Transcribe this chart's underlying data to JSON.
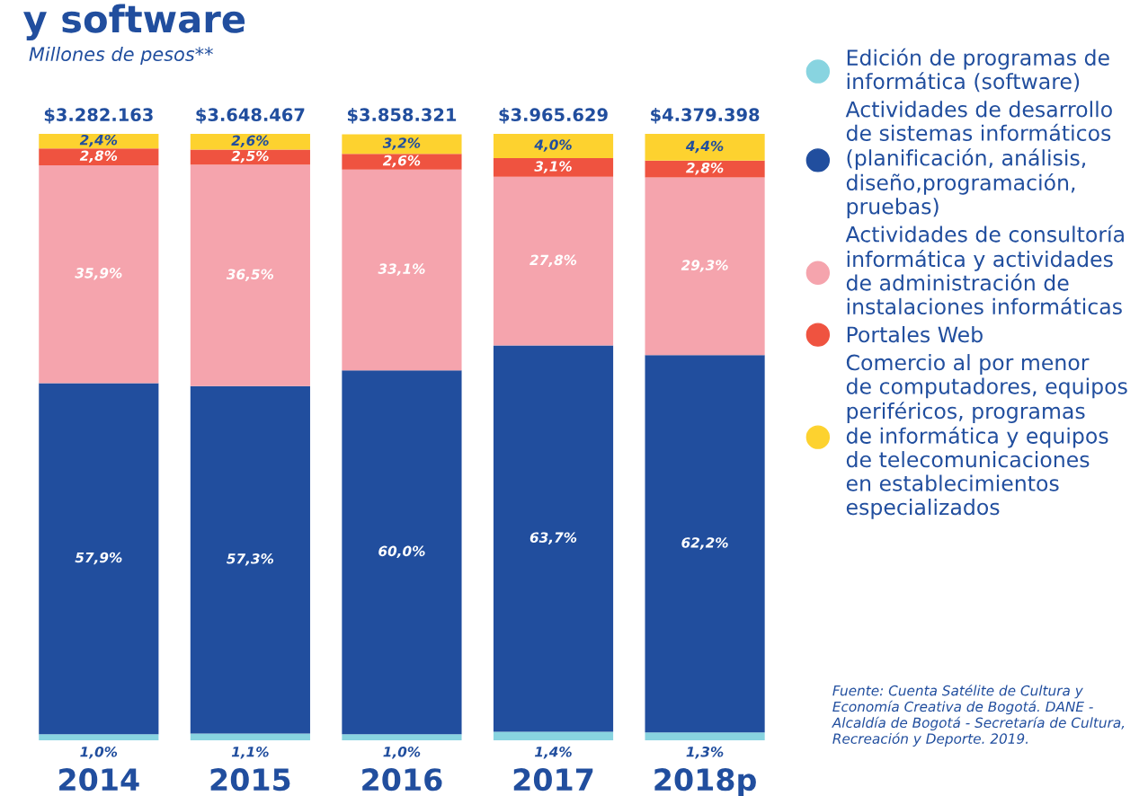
{
  "chart_data": {
    "type": "bar",
    "title": "y software",
    "subtitle": "Millones de pesos**",
    "categories": [
      "2014",
      "2015",
      "2016",
      "2017",
      "2018p"
    ],
    "stacked": true,
    "tick_labels": "x",
    "legend": "right",
    "grid": false,
    "series": [
      {
        "name": "Edición de programas de\ninformática (software)",
        "color": "#88d4e0",
        "values": [
          1.0,
          1.1,
          1.0,
          1.4,
          1.3
        ],
        "value_labels": [
          "1,0%",
          "1,1%",
          "1,0%",
          "1,4%",
          "1,3%"
        ]
      },
      {
        "name": "Actividades de desarrollo\nde sistemas informáticos\n(planificación, análisis,\ndiseño,programación,\npruebas)",
        "color": "#214e9e",
        "values": [
          57.9,
          57.3,
          60.0,
          63.7,
          62.2
        ],
        "value_labels": [
          "57,9%",
          "57,3%",
          "60,0%",
          "63,7%",
          "62,2%"
        ]
      },
      {
        "name": "Actividades de consultoría\ninformática y actividades\nde administración de\ninstalaciones informáticas",
        "color": "#f5a4ad",
        "values": [
          35.9,
          36.5,
          33.1,
          27.8,
          29.3
        ],
        "value_labels": [
          "35,9%",
          "36,5%",
          "33,1%",
          "27,8%",
          "29,3%"
        ]
      },
      {
        "name": "Portales Web",
        "color": "#ef5340",
        "values": [
          2.8,
          2.5,
          2.6,
          3.1,
          2.8
        ],
        "value_labels": [
          "2,8%",
          "2,5%",
          "2,6%",
          "3,1%",
          "2,8%"
        ]
      },
      {
        "name": "Comercio al por menor\nde computadores, equipos\nperiféricos, programas\nde informática y equipos\nde telecomunicaciones\nen establecimientos\nespecializados",
        "color": "#fdd22f",
        "values": [
          2.4,
          2.6,
          3.2,
          4.0,
          4.4
        ],
        "value_labels": [
          "2,4%",
          "2,6%",
          "3,2%",
          "4,0%",
          "4,4%"
        ]
      }
    ],
    "annotations": [
      {
        "text": "$3.282.163",
        "x": "2014",
        "y": 100
      },
      {
        "text": "$3.648.467",
        "x": "2015",
        "y": 100
      },
      {
        "text": "$3.858.321",
        "x": "2016",
        "y": 100
      },
      {
        "text": "$3.965.629",
        "x": "2017",
        "y": 100
      },
      {
        "text": "$4.379.398",
        "x": "2018p",
        "y": 100
      },
      "Fuente: Cuenta Satélite de Cultura y Economía Creativa de Bogotá. DANE - Alcaldía de Bogotá - Secretaría de Cultura, Recreación y Deporte. 2019."
    ]
  }
}
